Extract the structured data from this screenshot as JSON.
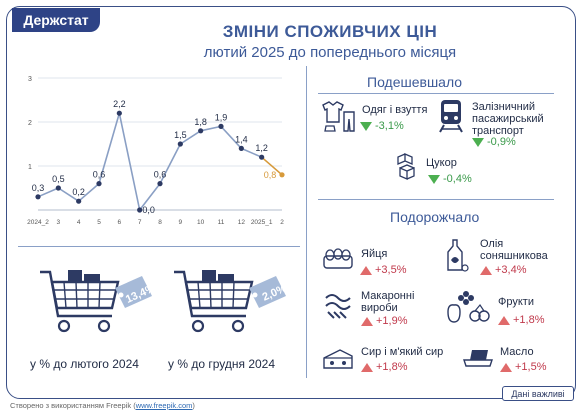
{
  "logo": "Держстат",
  "title": "ЗМІНИ СПОЖИВЧИХ ЦІН",
  "subtitle": "лютий 2025 до попереднього місяця",
  "colors": {
    "line": "#8a9fc4",
    "point": "#2d3a63",
    "accent_point": "#d79a3a",
    "down": "#4caf50",
    "up": "#e06a6a"
  },
  "cheaper": {
    "heading": "Подешевшало",
    "items": [
      {
        "label": "Одяг і взуття",
        "value": "-3,1%",
        "icon": "clothes-icon"
      },
      {
        "label": "Залізничний пасажирський транспорт",
        "label_lines": [
          "Залізничний",
          "пасажирський",
          "транспорт"
        ],
        "value": "-0,9%",
        "icon": "train-icon"
      },
      {
        "label": "Цукор",
        "value": "-0,4%",
        "icon": "sugar-icon"
      }
    ]
  },
  "pricier": {
    "heading": "Подорожчало",
    "items": [
      {
        "label": "Яйця",
        "value": "+3,5%",
        "icon": "eggs-icon"
      },
      {
        "label": "Олія соняшникова",
        "label_lines": [
          "Олія",
          "соняшникова"
        ],
        "value": "+3,4%",
        "icon": "oil-icon"
      },
      {
        "label": "Макаронні вироби",
        "label_lines": [
          "Макаронні",
          "вироби"
        ],
        "value": "+1,9%",
        "icon": "pasta-icon"
      },
      {
        "label": "Фрукти",
        "value": "+1,8%",
        "icon": "fruit-icon"
      },
      {
        "label": "Сир і м'який сир",
        "value": "+1,8%",
        "icon": "cheese-icon"
      },
      {
        "label": "Масло",
        "value": "+1,5%",
        "icon": "butter-icon"
      }
    ]
  },
  "summary": [
    {
      "value": "13,4%",
      "caption": "у % до лютого 2024"
    },
    {
      "value": "2,0%",
      "caption": "у % до грудня 2024"
    }
  ],
  "footer": {
    "prefix": "Створено з використанням Freepik (",
    "link": "www.freepik.com",
    "suffix": ")"
  },
  "button": "Дані важливі",
  "chart_data": {
    "type": "line",
    "categories": [
      "2024_2",
      "3",
      "4",
      "5",
      "6",
      "7",
      "8",
      "9",
      "10",
      "11",
      "12",
      "2025_1",
      "2"
    ],
    "values": [
      0.3,
      0.5,
      0.2,
      0.6,
      2.2,
      0.0,
      0.6,
      1.5,
      1.8,
      1.9,
      1.4,
      1.2,
      0.8
    ],
    "labels": [
      "0,3",
      "0,5",
      "0,2",
      "0,6",
      "2,2",
      "0,0",
      "0,6",
      "1,5",
      "1,8",
      "1,9",
      "1,4",
      "1,2",
      "0,8"
    ],
    "yticks": [
      "1",
      "2",
      "3"
    ],
    "ylim": [
      0,
      3
    ],
    "grid": true,
    "highlight_last": true
  }
}
